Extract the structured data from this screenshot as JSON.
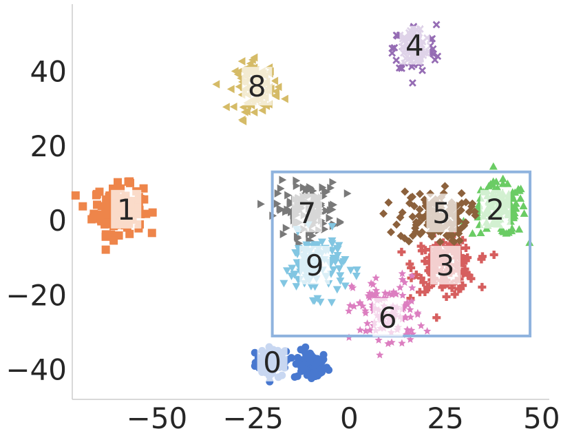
{
  "chart_data": {
    "type": "scatter",
    "title": "",
    "xlabel": "",
    "ylabel": "",
    "xlim": [
      -72,
      52
    ],
    "ylim": [
      -48,
      58
    ],
    "grid": false,
    "xticks": [
      -50,
      -25,
      0,
      25,
      50
    ],
    "yticks": [
      -40,
      -20,
      0,
      20,
      40
    ],
    "xtick_labels": [
      "−50",
      "−25",
      "0",
      "25",
      "50"
    ],
    "ytick_labels": [
      "−40",
      "−20",
      "0",
      "20",
      "40"
    ],
    "highlight_box": {
      "x": [
        -20,
        47
      ],
      "y": [
        -31,
        13
      ],
      "color": "#8fb3de"
    },
    "clusters": [
      {
        "label": "0",
        "center": [
          -20,
          -38
        ],
        "color": "#4878cf",
        "marker": "circle"
      },
      {
        "label": "0",
        "center": [
          -10,
          -39
        ],
        "color": "#4878cf",
        "marker": "circle"
      },
      {
        "label": "1",
        "center": [
          -60,
          3
        ],
        "color": "#ee854a",
        "marker": "square"
      },
      {
        "label": "2",
        "center": [
          39,
          3
        ],
        "color": "#6acc64",
        "marker": "triangle-up"
      },
      {
        "label": "3",
        "center": [
          25,
          -12
        ],
        "color": "#d65f5f",
        "marker": "plus"
      },
      {
        "label": "4",
        "center": [
          17,
          46
        ],
        "color": "#956cb4",
        "marker": "x"
      },
      {
        "label": "5",
        "center": [
          22,
          1
        ],
        "color": "#8c613c",
        "marker": "diamond"
      },
      {
        "label": "6",
        "center": [
          10,
          -25
        ],
        "color": "#dc7ec0",
        "marker": "star"
      },
      {
        "label": "7",
        "center": [
          -11,
          3
        ],
        "color": "#797979",
        "marker": "triangle-right"
      },
      {
        "label": "8",
        "center": [
          -24,
          36
        ],
        "color": "#d5bb67",
        "marker": "triangle-left"
      },
      {
        "label": "9",
        "center": [
          -9,
          -12
        ],
        "color": "#82c6e2",
        "marker": "triangle-down"
      }
    ],
    "cluster_labels": [
      {
        "text": "0",
        "at": [
          -20,
          -38
        ]
      },
      {
        "text": "1",
        "at": [
          -58,
          3
        ]
      },
      {
        "text": "2",
        "at": [
          38,
          3
        ]
      },
      {
        "text": "3",
        "at": [
          25,
          -12
        ]
      },
      {
        "text": "4",
        "at": [
          17,
          47
        ]
      },
      {
        "text": "5",
        "at": [
          24,
          2
        ]
      },
      {
        "text": "6",
        "at": [
          10,
          -26
        ]
      },
      {
        "text": "7",
        "at": [
          -11,
          2
        ]
      },
      {
        "text": "8",
        "at": [
          -24,
          36
        ]
      },
      {
        "text": "9",
        "at": [
          -9,
          -12
        ]
      }
    ]
  }
}
